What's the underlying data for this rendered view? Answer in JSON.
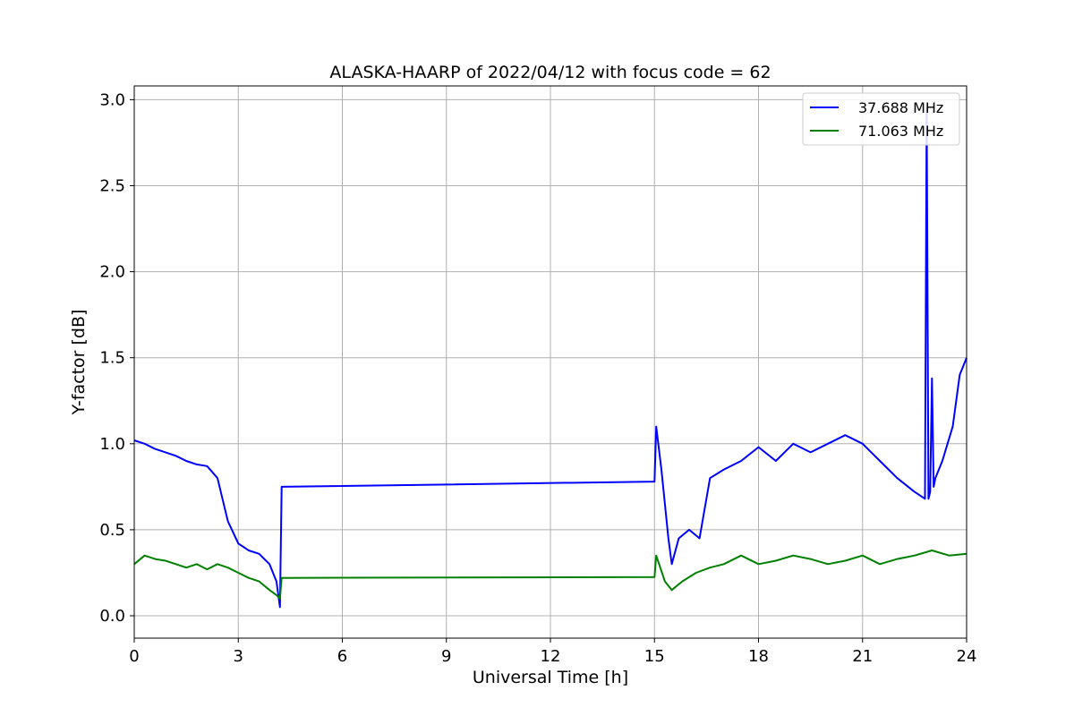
{
  "chart_data": {
    "type": "line",
    "title": "ALASKA-HAARP of 2022/04/12 with focus code = 62",
    "xlabel": "Universal Time [h]",
    "ylabel": "Y-factor [dB]",
    "xlim": [
      0,
      24
    ],
    "ylim": [
      -0.13,
      3.08
    ],
    "xticks": [
      0,
      3,
      6,
      9,
      12,
      15,
      18,
      21,
      24
    ],
    "yticks": [
      0.0,
      0.5,
      1.0,
      1.5,
      2.0,
      2.5,
      3.0
    ],
    "xtick_labels": [
      "0",
      "3",
      "6",
      "9",
      "12",
      "15",
      "18",
      "21",
      "24"
    ],
    "ytick_labels": [
      "0.0",
      "0.5",
      "1.0",
      "1.5",
      "2.0",
      "2.5",
      "3.0"
    ],
    "grid": true,
    "legend_position": "top-right",
    "series": [
      {
        "name": "37.688 MHz",
        "color": "#0000ff",
        "x": [
          0,
          0.3,
          0.6,
          0.9,
          1.2,
          1.5,
          1.8,
          2.1,
          2.4,
          2.7,
          3.0,
          3.3,
          3.6,
          3.9,
          4.1,
          4.2,
          4.25,
          15.0,
          15.05,
          15.2,
          15.4,
          15.5,
          15.7,
          16.0,
          16.3,
          16.6,
          17.0,
          17.5,
          18.0,
          18.5,
          19.0,
          19.5,
          20.0,
          20.5,
          21.0,
          21.5,
          22.0,
          22.5,
          22.8,
          22.85,
          22.9,
          22.95,
          23.0,
          23.05,
          23.1,
          23.3,
          23.6,
          23.8,
          24.0
        ],
        "y": [
          1.02,
          1.0,
          0.97,
          0.95,
          0.93,
          0.9,
          0.88,
          0.87,
          0.8,
          0.55,
          0.42,
          0.38,
          0.36,
          0.3,
          0.2,
          0.05,
          0.75,
          0.78,
          1.1,
          0.85,
          0.45,
          0.3,
          0.45,
          0.5,
          0.45,
          0.8,
          0.85,
          0.9,
          0.98,
          0.9,
          1.0,
          0.95,
          1.0,
          1.05,
          1.0,
          0.9,
          0.8,
          0.72,
          0.68,
          2.95,
          0.68,
          0.72,
          1.38,
          0.75,
          0.8,
          0.9,
          1.1,
          1.4,
          1.5
        ]
      },
      {
        "name": "71.063 MHz",
        "color": "#008000",
        "x": [
          0,
          0.3,
          0.6,
          0.9,
          1.2,
          1.5,
          1.8,
          2.1,
          2.4,
          2.7,
          3.0,
          3.3,
          3.6,
          3.9,
          4.1,
          4.2,
          4.25,
          15.0,
          15.05,
          15.3,
          15.5,
          15.8,
          16.2,
          16.6,
          17.0,
          17.5,
          18.0,
          18.5,
          19.0,
          19.5,
          20.0,
          20.5,
          21.0,
          21.5,
          22.0,
          22.5,
          23.0,
          23.5,
          24.0
        ],
        "y": [
          0.3,
          0.35,
          0.33,
          0.32,
          0.3,
          0.28,
          0.3,
          0.27,
          0.3,
          0.28,
          0.25,
          0.22,
          0.2,
          0.15,
          0.12,
          0.1,
          0.22,
          0.225,
          0.35,
          0.2,
          0.15,
          0.2,
          0.25,
          0.28,
          0.3,
          0.35,
          0.3,
          0.32,
          0.35,
          0.33,
          0.3,
          0.32,
          0.35,
          0.3,
          0.33,
          0.35,
          0.38,
          0.35,
          0.36
        ]
      }
    ]
  }
}
